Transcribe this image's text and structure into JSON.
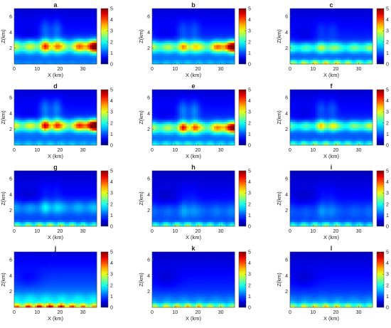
{
  "chart_data": {
    "type": "heatmap",
    "colormap": "jet",
    "colorbar": {
      "range": [
        0,
        5
      ],
      "ticks": [
        "0",
        "1",
        "2",
        "3",
        "4",
        "5"
      ]
    },
    "xlabel": "X (km)",
    "ylabel": "Z(km)",
    "xlim": [
      0,
      36
    ],
    "ylim": [
      0,
      7
    ],
    "xticks": [
      "10",
      "20",
      "30"
    ],
    "x_origin_tick": "0",
    "yticks": [
      "2",
      "4",
      "6"
    ],
    "panels": [
      {
        "label": "a",
        "bg": 1.0,
        "ridge_z": 2.25,
        "ridge_width": 0.55,
        "ridge_amp": 2.1,
        "ridge_right_boost": 1.3,
        "hot_spots": [
          13.5,
          18.5
        ],
        "spot_amp": 1.3,
        "ground_amp": 0.2,
        "upper_level": 0.55
      },
      {
        "label": "b",
        "bg": 1.05,
        "ridge_z": 2.2,
        "ridge_width": 0.5,
        "ridge_amp": 1.9,
        "ridge_right_boost": 1.6,
        "hot_spots": [
          13.5,
          18.5
        ],
        "spot_amp": 0.9,
        "ground_amp": 0.5,
        "upper_level": 0.6
      },
      {
        "label": "c",
        "bg": 1.0,
        "ridge_z": 2.1,
        "ridge_width": 0.45,
        "ridge_amp": 1.4,
        "ridge_right_boost": 0.3,
        "hot_spots": [
          13.5,
          18.5
        ],
        "spot_amp": 0.6,
        "ground_amp": 2.2,
        "upper_level": 0.55
      },
      {
        "label": "d",
        "bg": 1.05,
        "ridge_z": 2.5,
        "ridge_width": 0.5,
        "ridge_amp": 2.2,
        "ridge_right_boost": 1.5,
        "hot_spots": [
          13.5,
          18.5
        ],
        "spot_amp": 1.6,
        "ground_amp": 0.6,
        "upper_level": 0.6
      },
      {
        "label": "e",
        "bg": 1.05,
        "ridge_z": 2.25,
        "ridge_width": 0.5,
        "ridge_amp": 1.9,
        "ridge_right_boost": 1.4,
        "hot_spots": [
          13.5,
          18.5
        ],
        "spot_amp": 1.6,
        "ground_amp": 1.0,
        "upper_level": 0.6
      },
      {
        "label": "f",
        "bg": 1.0,
        "ridge_z": 2.45,
        "ridge_width": 0.45,
        "ridge_amp": 1.5,
        "ridge_right_boost": 0.4,
        "hot_spots": [
          13.5,
          18.5
        ],
        "spot_amp": 1.1,
        "ground_amp": 1.6,
        "upper_level": 0.55
      },
      {
        "label": "g",
        "bg": 0.9,
        "ridge_z": 2.4,
        "ridge_width": 0.6,
        "ridge_amp": 0.7,
        "ridge_right_boost": 0.2,
        "hot_spots": [
          13.5,
          18.5
        ],
        "spot_amp": 0.4,
        "ground_amp": 2.0,
        "upper_level": 0.45
      },
      {
        "label": "h",
        "bg": 0.85,
        "ridge_z": 2.0,
        "ridge_width": 0.7,
        "ridge_amp": 0.4,
        "ridge_right_boost": 0.3,
        "hot_spots": [
          14.0,
          18.0
        ],
        "spot_amp": 0.3,
        "ground_amp": 1.8,
        "upper_level": 0.4
      },
      {
        "label": "i",
        "bg": 0.85,
        "ridge_z": 2.0,
        "ridge_width": 0.7,
        "ridge_amp": 0.3,
        "ridge_right_boost": 0.3,
        "hot_spots": [
          14.0,
          18.0
        ],
        "spot_amp": 0.3,
        "ground_amp": 1.7,
        "upper_level": 0.4
      },
      {
        "label": "j",
        "bg": 1.25,
        "ridge_z": 1.0,
        "ridge_width": 0.6,
        "ridge_amp": 0.6,
        "ridge_right_boost": 0.0,
        "hot_spots": [],
        "spot_amp": 0.0,
        "ground_amp": 3.2,
        "upper_level": 0.55
      },
      {
        "label": "k",
        "bg": 0.95,
        "ridge_z": 0.8,
        "ridge_width": 0.6,
        "ridge_amp": 0.4,
        "ridge_right_boost": 0.0,
        "hot_spots": [],
        "spot_amp": 0.0,
        "ground_amp": 2.3,
        "upper_level": 0.4
      },
      {
        "label": "l",
        "bg": 0.95,
        "ridge_z": 0.8,
        "ridge_width": 0.6,
        "ridge_amp": 0.4,
        "ridge_right_boost": 0.0,
        "hot_spots": [],
        "spot_amp": 0.0,
        "ground_amp": 2.2,
        "upper_level": 0.4
      }
    ]
  }
}
